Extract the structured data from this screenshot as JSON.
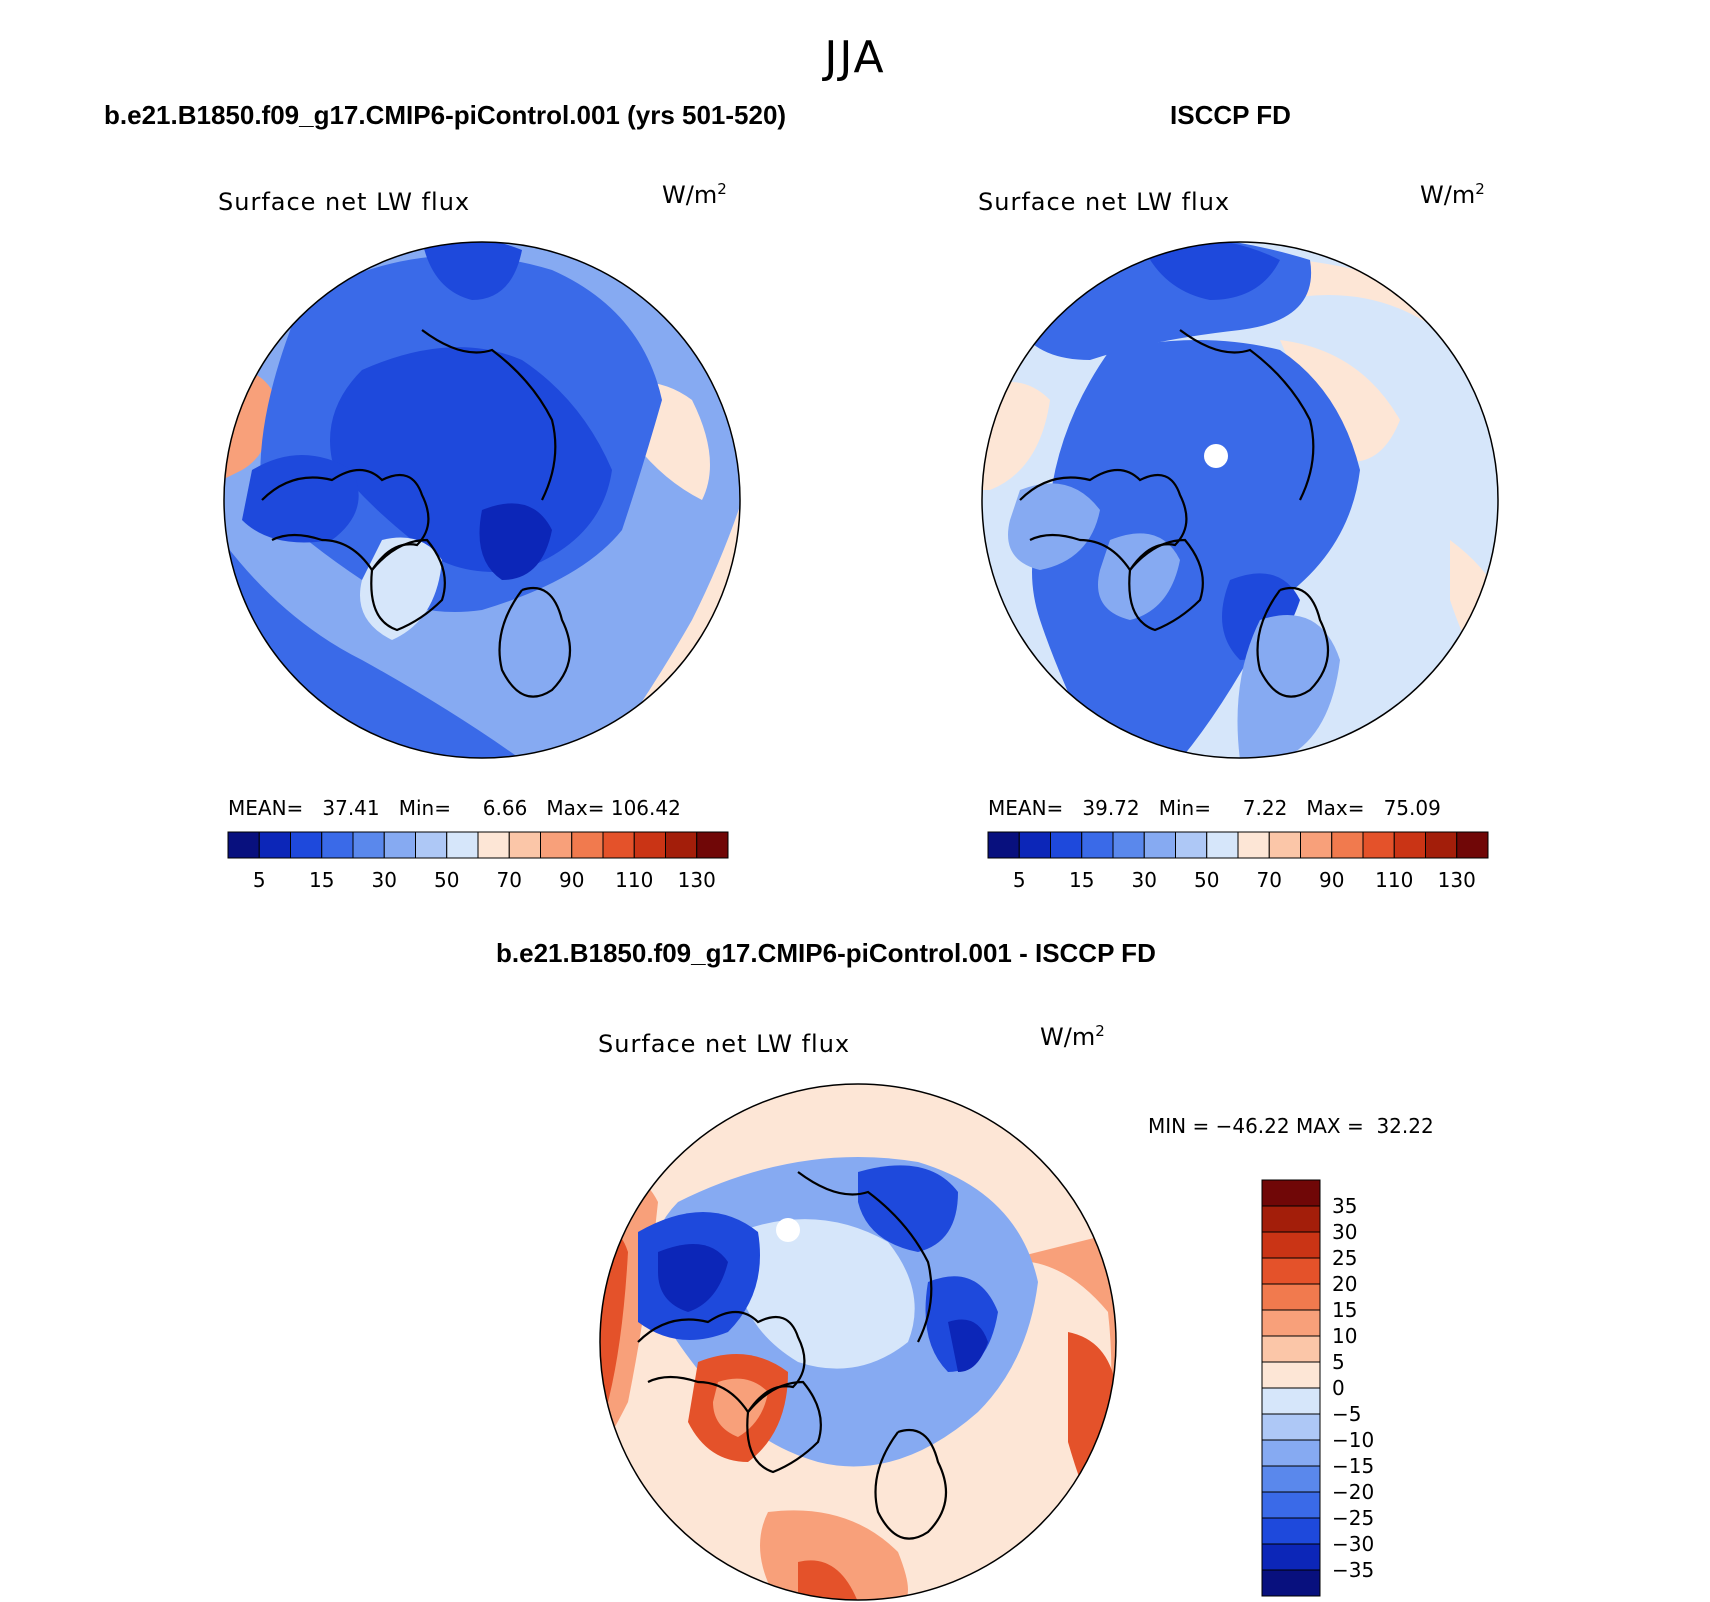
{
  "season": "JJA",
  "panels": {
    "model": {
      "exp_title": "b.e21.B1850.f09_g17.CMIP6-piControl.001 (yrs 501-520)",
      "plot_title": "Surface net LW flux",
      "units_base": "W/m",
      "units_exp": "2",
      "stats": {
        "mean_label": "MEAN=",
        "mean": "37.41",
        "min_label": "Min=",
        "min": "6.66",
        "max_label": "Max=",
        "max": "106.42"
      }
    },
    "obs": {
      "exp_title": "ISCCP FD",
      "plot_title": "Surface net LW flux",
      "units_base": "W/m",
      "units_exp": "2",
      "stats": {
        "mean_label": "MEAN=",
        "mean": "39.72",
        "min_label": "Min=",
        "min": "7.22",
        "max_label": "Max=",
        "max": "75.09"
      }
    },
    "diff": {
      "exp_title": "b.e21.B1850.f09_g17.CMIP6-piControl.001 - ISCCP FD",
      "plot_title": "Surface net LW flux",
      "units_base": "W/m",
      "units_exp": "2",
      "stats": {
        "min_label": "MIN =",
        "min": "−46.22",
        "max_label": "MAX =",
        "max": "32.22"
      }
    }
  },
  "colorbar_abs": {
    "colors": [
      "#08107e",
      "#0c26b8",
      "#1e49dc",
      "#3a6ae8",
      "#5a88ec",
      "#86aaf2",
      "#aec8f6",
      "#d6e6fa",
      "#fde6d6",
      "#fbc6a8",
      "#f8a07a",
      "#f17a4e",
      "#e4522a",
      "#ca3415",
      "#a31e0a",
      "#700707"
    ],
    "labels": [
      "5",
      "15",
      "30",
      "50",
      "70",
      "90",
      "110",
      "130"
    ]
  },
  "colorbar_diff": {
    "colors": [
      "#08107e",
      "#0c26b8",
      "#1e49dc",
      "#3a6ae8",
      "#5a88ec",
      "#86aaf2",
      "#aec8f6",
      "#d6e6fa",
      "#fde6d6",
      "#fbc6a8",
      "#f8a07a",
      "#f17a4e",
      "#e4522a",
      "#ca3415",
      "#a31e0a",
      "#700707"
    ],
    "labels": [
      "35",
      "30",
      "25",
      "20",
      "15",
      "10",
      "5",
      "0",
      "−5",
      "−10",
      "−15",
      "−20",
      "−25",
      "−30",
      "−35"
    ]
  },
  "map_colors": {
    "deep_blue": "#0c26b8",
    "blue": "#1e49dc",
    "mid_blue": "#3a6ae8",
    "light_blue": "#86aaf2",
    "pale_blue": "#d6e6fa",
    "pale_orange": "#fde6d6",
    "orange": "#f8a07a",
    "red_orange": "#e4522a",
    "missing": "#ffffff",
    "coast": "#000000"
  }
}
